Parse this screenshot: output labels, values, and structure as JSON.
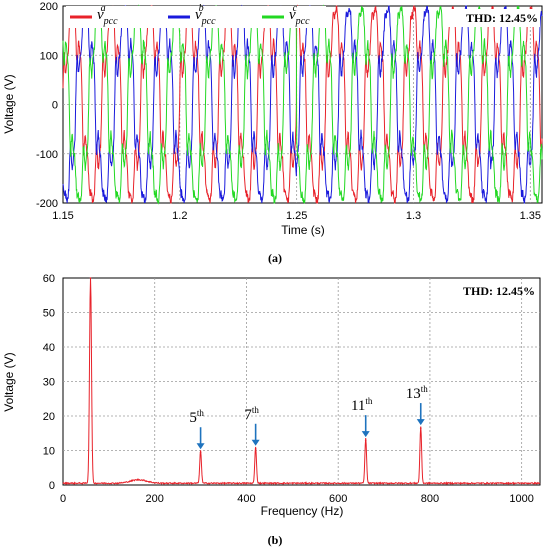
{
  "chart_data": [
    {
      "type": "line",
      "caption": "(a)",
      "xlabel": "Time (s)",
      "ylabel": "Voltage (V)",
      "xlim": [
        1.15,
        1.355
      ],
      "ylim": [
        -200,
        200
      ],
      "x_ticks": [
        "1.15",
        "1.2",
        "1.25",
        "1.3",
        "1.35"
      ],
      "y_ticks": [
        "200",
        "100",
        "0",
        "-100",
        "-200"
      ],
      "grid": true,
      "legend_position": "top-left",
      "annotation": "THD: 12.45%",
      "waveform": {
        "frequency_hz": 60,
        "amplitude_v": 180,
        "phase_shift_deg": 120,
        "phase_jump_time_s": 1.25
      },
      "series": [
        {
          "name": "v_pcc^a",
          "base": "v",
          "sub": "pcc",
          "sup": "a",
          "color": "#e8222a"
        },
        {
          "name": "v_pcc^b",
          "base": "v",
          "sub": "pcc",
          "sup": "b",
          "color": "#1a1adc"
        },
        {
          "name": "v_pcc^c",
          "base": "v",
          "sub": "pcc",
          "sup": "c",
          "color": "#22d822"
        }
      ]
    },
    {
      "type": "line",
      "caption": "(b)",
      "xlabel": "Frequency (Hz)",
      "ylabel": "Voltage (V)",
      "xlim": [
        0,
        1040
      ],
      "ylim": [
        0,
        60
      ],
      "x_ticks": [
        "0",
        "200",
        "400",
        "600",
        "800",
        "1000"
      ],
      "y_ticks": [
        "60",
        "50",
        "40",
        "30",
        "20",
        "10",
        "0"
      ],
      "grid": true,
      "annotation": "THD: 12.45%",
      "color": "#e8222a",
      "peaks": [
        {
          "x": 60,
          "y": 60
        },
        {
          "x": 300,
          "y": 9.5
        },
        {
          "x": 420,
          "y": 10.5
        },
        {
          "x": 660,
          "y": 13
        },
        {
          "x": 780,
          "y": 16.5
        }
      ],
      "harmonic_labels": [
        {
          "num": "5",
          "sup": "th",
          "x": 300
        },
        {
          "num": "7",
          "sup": "th",
          "x": 420
        },
        {
          "num": "11",
          "sup": "th",
          "x": 660
        },
        {
          "num": "13",
          "sup": "th",
          "x": 780
        }
      ],
      "arrow_color": "#1e73be"
    }
  ]
}
